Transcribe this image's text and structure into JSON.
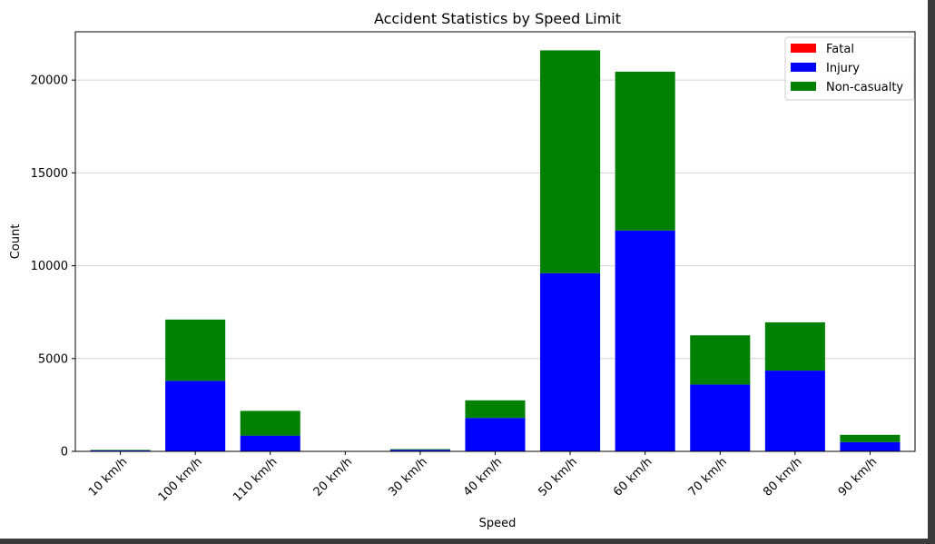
{
  "colors": {
    "fatal": "#ff0000",
    "injury": "#0000ff",
    "non_casualty": "#008000",
    "grid": "#d3d3d3",
    "background": "#ffffff",
    "window_frame": "#3b3b3b"
  },
  "chart_data": {
    "type": "bar",
    "stacked": true,
    "title": "Accident Statistics by Speed Limit",
    "xlabel": "Speed",
    "ylabel": "Count",
    "ylim": [
      0,
      22600
    ],
    "yticks": [
      0,
      5000,
      10000,
      15000,
      20000
    ],
    "grid": "horizontal",
    "legend_position": "top-right",
    "categories": [
      "10 km/h",
      "100 km/h",
      "110 km/h",
      "20 km/h",
      "30 km/h",
      "40 km/h",
      "50 km/h",
      "60 km/h",
      "70 km/h",
      "80 km/h",
      "90 km/h"
    ],
    "series": [
      {
        "name": "Fatal",
        "color": "#ff0000",
        "values": [
          0,
          0,
          0,
          0,
          0,
          0,
          0,
          0,
          0,
          0,
          0
        ]
      },
      {
        "name": "Injury",
        "color": "#0000ff",
        "values": [
          55,
          3800,
          850,
          5,
          85,
          1800,
          9600,
          11900,
          3600,
          4350,
          500
        ]
      },
      {
        "name": "Non-casualty",
        "color": "#008000",
        "values": [
          25,
          3300,
          1330,
          5,
          35,
          950,
          12000,
          8550,
          2650,
          2600,
          390
        ]
      }
    ]
  }
}
